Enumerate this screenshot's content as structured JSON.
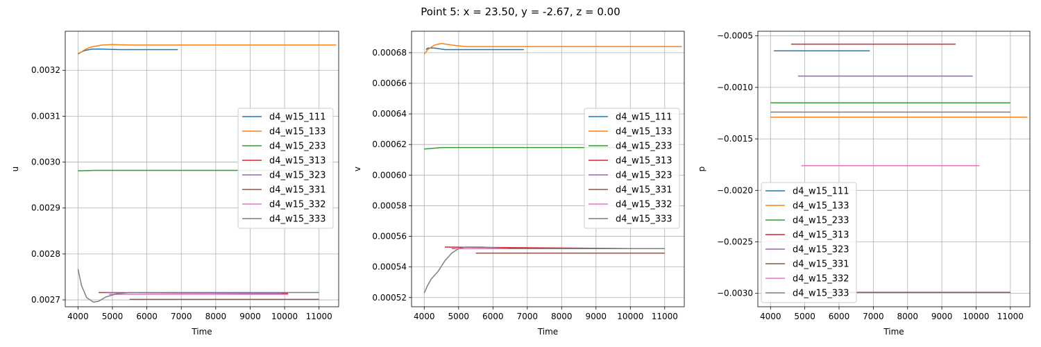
{
  "figure": {
    "suptitle": "Point 5: x = 23.50, y = -2.67, z = 0.00"
  },
  "colors": {
    "d4_w15_111": "#1f77b4",
    "d4_w15_133": "#ff7f0e",
    "d4_w15_233": "#2ca02c",
    "d4_w15_313": "#d62728",
    "d4_w15_323": "#9467bd",
    "d4_w15_331": "#8c564b",
    "d4_w15_332": "#e377c2",
    "d4_w15_333": "#7f7f7f",
    "grid": "#b0b0b0"
  },
  "chart_data": [
    {
      "type": "line",
      "title": "",
      "xlabel": "Time",
      "ylabel": "u",
      "xlim": [
        3630,
        11570
      ],
      "ylim": [
        0.002685,
        0.003285
      ],
      "xticks": [
        4000,
        5000,
        6000,
        7000,
        8000,
        9000,
        10000,
        11000
      ],
      "yticks": [
        0.0027,
        0.0028,
        0.0029,
        0.003,
        0.0031,
        0.0032
      ],
      "ytick_labels": [
        "0.0027",
        "0.0028",
        "0.0029",
        "0.0030",
        "0.0031",
        "0.0032"
      ],
      "grid": true,
      "legend": {
        "position": "center-right"
      },
      "series": [
        {
          "name": "d4_w15_111",
          "points": [
            [
              4000,
              0.003236
            ],
            [
              4100,
              0.00324
            ],
            [
              4200,
              0.003243
            ],
            [
              4400,
              0.003246
            ],
            [
              4700,
              0.003246
            ],
            [
              5200,
              0.003245
            ],
            [
              6000,
              0.003245
            ],
            [
              6900,
              0.003245
            ]
          ]
        },
        {
          "name": "d4_w15_133",
          "points": [
            [
              4000,
              0.003235
            ],
            [
              4200,
              0.003245
            ],
            [
              4400,
              0.003251
            ],
            [
              4700,
              0.003255
            ],
            [
              5000,
              0.003256
            ],
            [
              5500,
              0.003255
            ],
            [
              6500,
              0.003255
            ],
            [
              11500,
              0.003255
            ]
          ]
        },
        {
          "name": "d4_w15_233",
          "points": [
            [
              4000,
              0.002981
            ],
            [
              4500,
              0.002982
            ],
            [
              5000,
              0.002982
            ],
            [
              11000,
              0.002982
            ]
          ]
        },
        {
          "name": "d4_w15_313",
          "points": [
            [
              4600,
              0.002716
            ],
            [
              10100,
              0.002714
            ]
          ]
        },
        {
          "name": "d4_w15_323",
          "points": [
            [
              4800,
              0.002716
            ],
            [
              9900,
              0.002714
            ]
          ]
        },
        {
          "name": "d4_w15_331",
          "points": [
            [
              5500,
              0.002701
            ],
            [
              11000,
              0.002701
            ]
          ]
        },
        {
          "name": "d4_w15_332",
          "points": [
            [
              4900,
              0.002712
            ],
            [
              10100,
              0.002712
            ]
          ]
        },
        {
          "name": "d4_w15_333",
          "points": [
            [
              4000,
              0.002767
            ],
            [
              4100,
              0.002732
            ],
            [
              4250,
              0.002705
            ],
            [
              4450,
              0.002695
            ],
            [
              4600,
              0.002697
            ],
            [
              4800,
              0.002706
            ],
            [
              5100,
              0.002713
            ],
            [
              5500,
              0.002716
            ],
            [
              6000,
              0.002716
            ],
            [
              8000,
              0.002716
            ],
            [
              11000,
              0.002716
            ]
          ]
        }
      ]
    },
    {
      "type": "line",
      "title": "",
      "xlabel": "Time",
      "ylabel": "v",
      "xlim": [
        3630,
        11570
      ],
      "ylim": [
        0.000514,
        0.000694
      ],
      "xticks": [
        4000,
        5000,
        6000,
        7000,
        8000,
        9000,
        10000,
        11000
      ],
      "yticks": [
        0.00052,
        0.00054,
        0.00056,
        0.00058,
        0.0006,
        0.00062,
        0.00064,
        0.00066,
        0.00068
      ],
      "ytick_labels": [
        "0.00052",
        "0.00054",
        "0.00056",
        "0.00058",
        "0.00060",
        "0.00062",
        "0.00064",
        "0.00066",
        "0.00068"
      ],
      "grid": true,
      "legend": {
        "position": "center-right"
      },
      "series": [
        {
          "name": "d4_w15_111",
          "points": [
            [
              4050,
              0.000682
            ],
            [
              4100,
              0.000683
            ],
            [
              4300,
              0.000683
            ],
            [
              4600,
              0.000682
            ],
            [
              5000,
              0.000682
            ],
            [
              5500,
              0.000682
            ],
            [
              6900,
              0.000682
            ]
          ]
        },
        {
          "name": "d4_w15_133",
          "points": [
            [
              4000,
              0.000679
            ],
            [
              4100,
              0.000682
            ],
            [
              4300,
              0.000685
            ],
            [
              4500,
              0.000686
            ],
            [
              4800,
              0.000685
            ],
            [
              5200,
              0.000684
            ],
            [
              6000,
              0.000684
            ],
            [
              11500,
              0.000684
            ]
          ]
        },
        {
          "name": "d4_w15_233",
          "points": [
            [
              4000,
              0.000617
            ],
            [
              4500,
              0.000618
            ],
            [
              5000,
              0.000618
            ],
            [
              11000,
              0.000618
            ]
          ]
        },
        {
          "name": "d4_w15_313",
          "points": [
            [
              4600,
              0.000553
            ],
            [
              10100,
              0.000552
            ]
          ]
        },
        {
          "name": "d4_w15_323",
          "points": [
            [
              4800,
              0.000552
            ],
            [
              9900,
              0.000552
            ]
          ]
        },
        {
          "name": "d4_w15_331",
          "points": [
            [
              5500,
              0.000549
            ],
            [
              11000,
              0.000549
            ]
          ]
        },
        {
          "name": "d4_w15_332",
          "points": [
            [
              4900,
              0.000552
            ],
            [
              10100,
              0.000552
            ]
          ]
        },
        {
          "name": "d4_w15_333",
          "points": [
            [
              4000,
              0.000523
            ],
            [
              4100,
              0.000528
            ],
            [
              4200,
              0.000532
            ],
            [
              4400,
              0.000537
            ],
            [
              4600,
              0.000544
            ],
            [
              4800,
              0.000549
            ],
            [
              5000,
              0.000552
            ],
            [
              5200,
              0.000553
            ],
            [
              5400,
              0.000553
            ],
            [
              5700,
              0.000553
            ],
            [
              6500,
              0.000552
            ],
            [
              11000,
              0.000552
            ]
          ]
        }
      ]
    },
    {
      "type": "line",
      "title": "",
      "xlabel": "Time",
      "ylabel": "p",
      "xlim": [
        3630,
        11570
      ],
      "ylim": [
        -0.00313,
        -0.000455
      ],
      "xticks": [
        4000,
        5000,
        6000,
        7000,
        8000,
        9000,
        10000,
        11000
      ],
      "yticks": [
        -0.003,
        -0.0025,
        -0.002,
        -0.0015,
        -0.001,
        -0.0005
      ],
      "ytick_labels": [
        "−0.0030",
        "−0.0025",
        "−0.0020",
        "−0.0015",
        "−0.0010",
        "−0.0005"
      ],
      "grid": true,
      "legend": {
        "position": "lower-left"
      },
      "series": [
        {
          "name": "d4_w15_111",
          "points": [
            [
              4100,
              -0.000645
            ],
            [
              6900,
              -0.000645
            ]
          ]
        },
        {
          "name": "d4_w15_133",
          "points": [
            [
              4000,
              -0.00129
            ],
            [
              11500,
              -0.00129
            ]
          ]
        },
        {
          "name": "d4_w15_233",
          "points": [
            [
              4000,
              -0.00115
            ],
            [
              11000,
              -0.00115
            ]
          ]
        },
        {
          "name": "d4_w15_313",
          "points": [
            [
              4600,
              -0.00058
            ],
            [
              9400,
              -0.00058
            ]
          ]
        },
        {
          "name": "d4_w15_323",
          "points": [
            [
              4800,
              -0.00089
            ],
            [
              9900,
              -0.00089
            ]
          ]
        },
        {
          "name": "d4_w15_331",
          "points": [
            [
              5500,
              -0.00299
            ],
            [
              11000,
              -0.00299
            ]
          ]
        },
        {
          "name": "d4_w15_332",
          "points": [
            [
              4900,
              -0.00176
            ],
            [
              10100,
              -0.00176
            ]
          ]
        },
        {
          "name": "d4_w15_333",
          "points": [
            [
              4000,
              -0.00124
            ],
            [
              5000,
              -0.00124
            ],
            [
              11000,
              -0.00124
            ]
          ]
        }
      ]
    }
  ]
}
